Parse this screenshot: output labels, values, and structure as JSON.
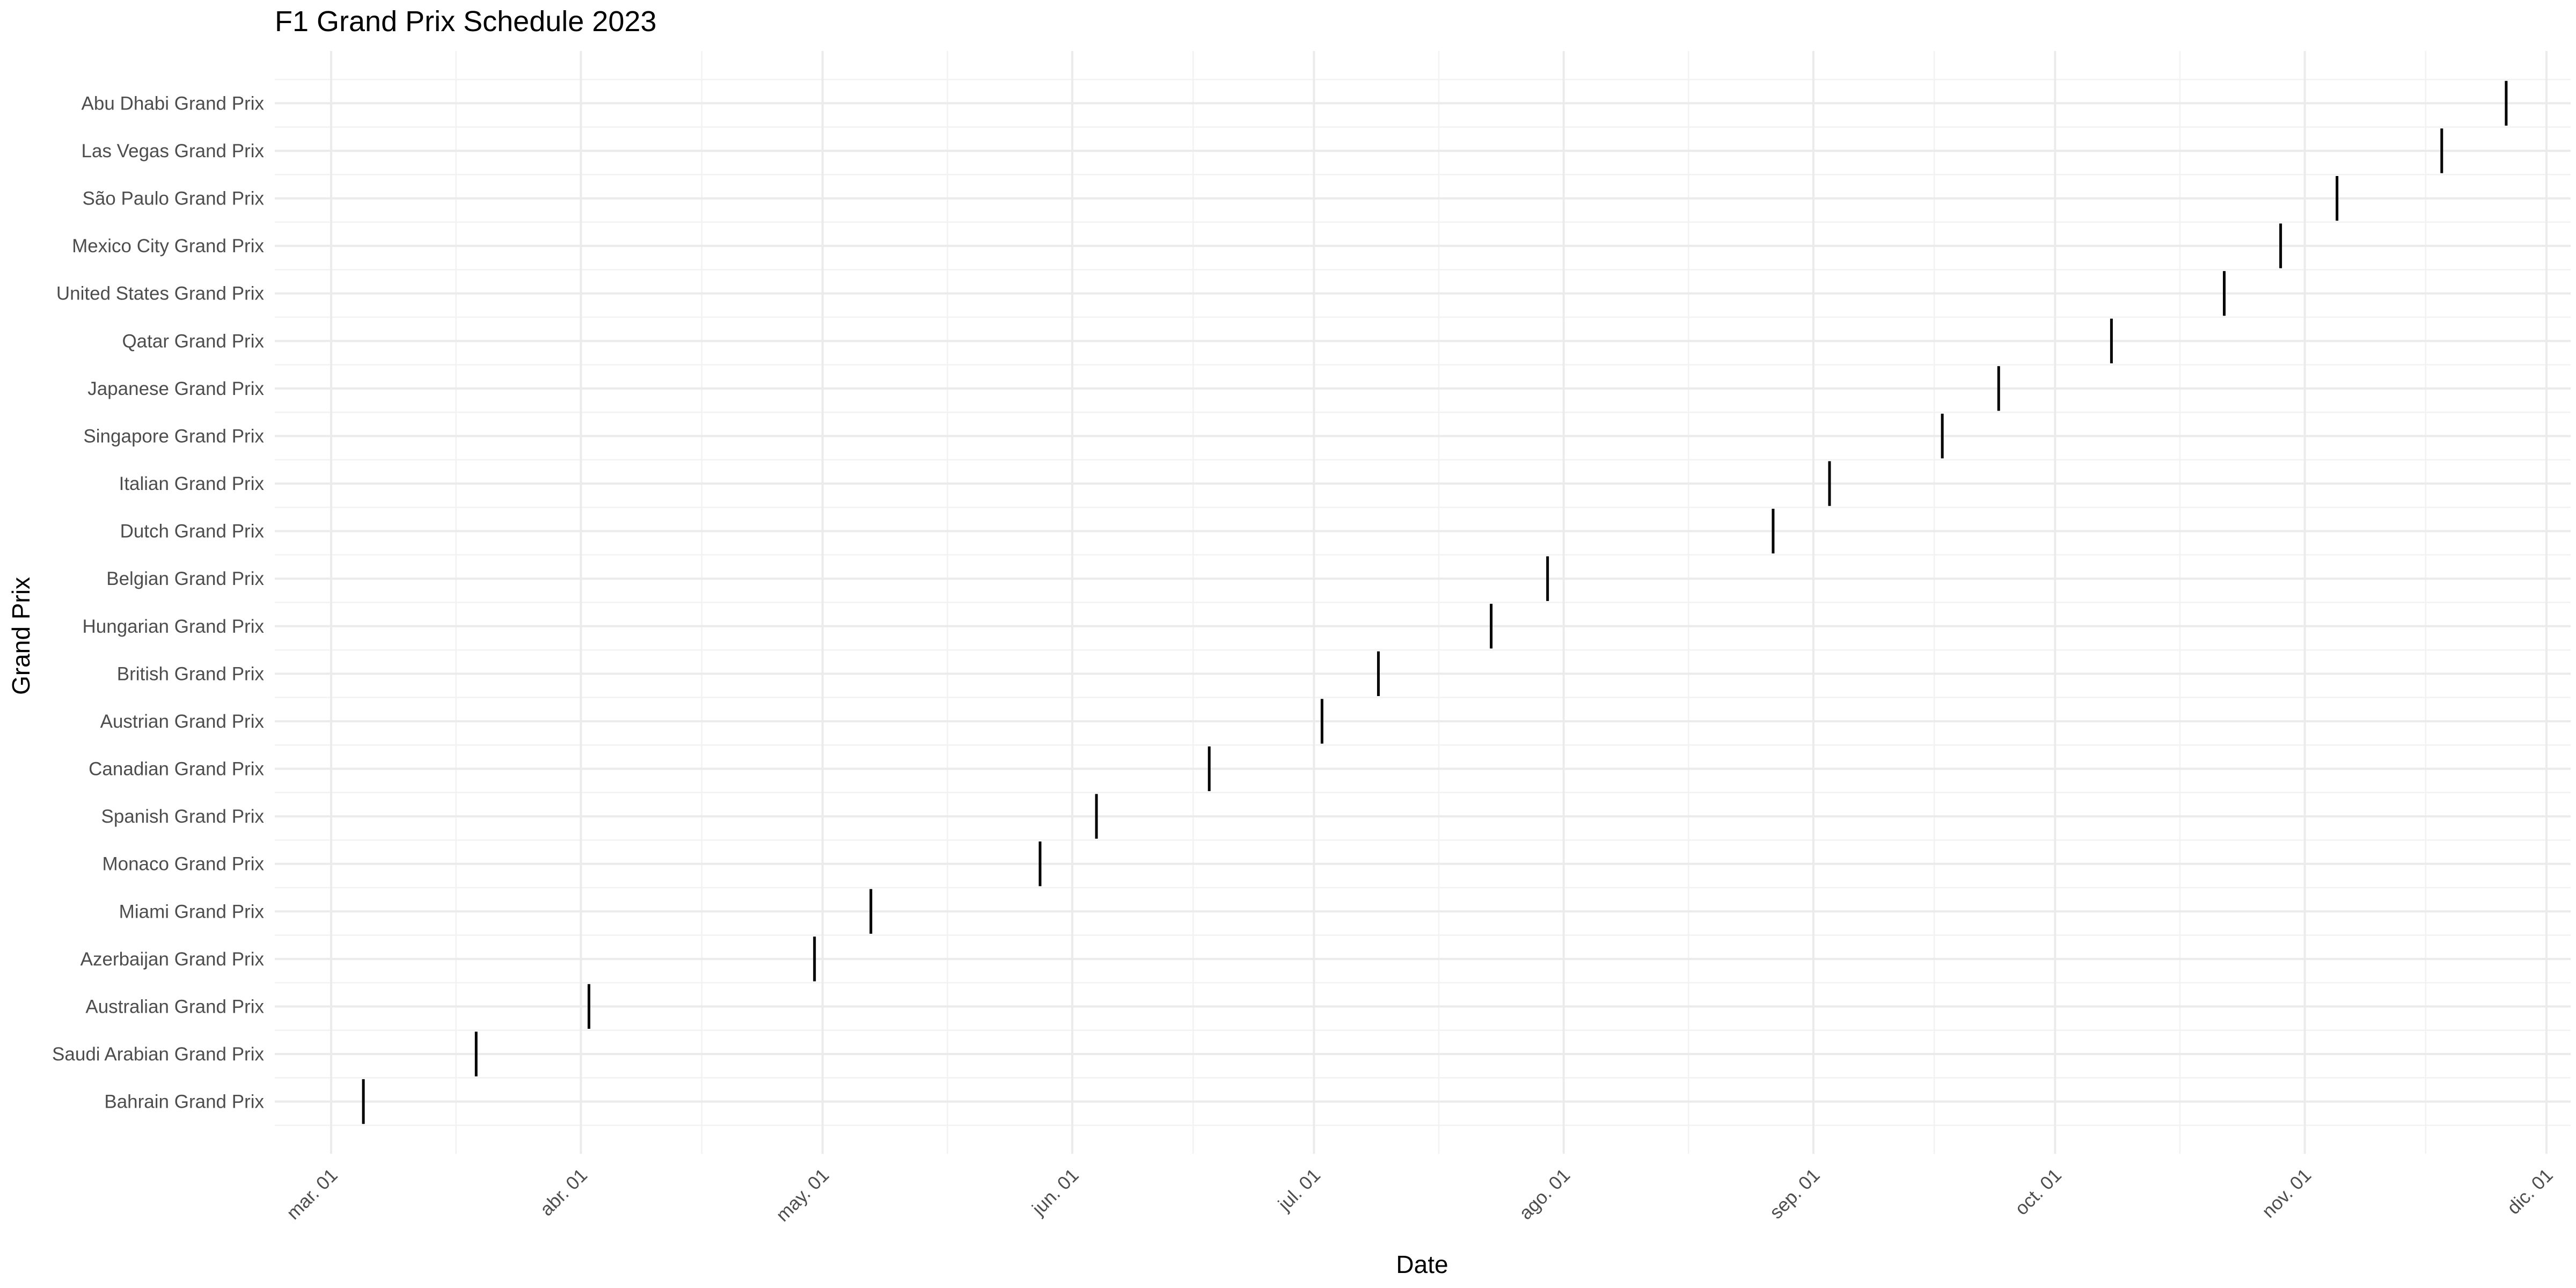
{
  "chart_data": {
    "type": "scatter",
    "title": "F1 Grand Prix Schedule 2023",
    "xlabel": "Date",
    "ylabel": "Grand Prix",
    "x_axis": {
      "type": "date",
      "range": [
        "2023-02-22",
        "2023-12-04"
      ],
      "ticks": [
        {
          "date": "2023-03-01",
          "label": "mar. 01"
        },
        {
          "date": "2023-04-01",
          "label": "abr. 01"
        },
        {
          "date": "2023-05-01",
          "label": "may. 01"
        },
        {
          "date": "2023-06-01",
          "label": "jun. 01"
        },
        {
          "date": "2023-07-01",
          "label": "jul. 01"
        },
        {
          "date": "2023-08-01",
          "label": "ago. 01"
        },
        {
          "date": "2023-09-01",
          "label": "sep. 01"
        },
        {
          "date": "2023-10-01",
          "label": "oct. 01"
        },
        {
          "date": "2023-11-01",
          "label": "nov. 01"
        },
        {
          "date": "2023-12-01",
          "label": "dic. 01"
        }
      ]
    },
    "grid": true,
    "points": [
      {
        "name": "Bahrain Grand Prix",
        "date": "2023-03-05"
      },
      {
        "name": "Saudi Arabian Grand Prix",
        "date": "2023-03-19"
      },
      {
        "name": "Australian Grand Prix",
        "date": "2023-04-02"
      },
      {
        "name": "Azerbaijan Grand Prix",
        "date": "2023-04-30"
      },
      {
        "name": "Miami Grand Prix",
        "date": "2023-05-07"
      },
      {
        "name": "Monaco Grand Prix",
        "date": "2023-05-28"
      },
      {
        "name": "Spanish Grand Prix",
        "date": "2023-06-04"
      },
      {
        "name": "Canadian Grand Prix",
        "date": "2023-06-18"
      },
      {
        "name": "Austrian Grand Prix",
        "date": "2023-07-02"
      },
      {
        "name": "British Grand Prix",
        "date": "2023-07-09"
      },
      {
        "name": "Hungarian Grand Prix",
        "date": "2023-07-23"
      },
      {
        "name": "Belgian Grand Prix",
        "date": "2023-07-30"
      },
      {
        "name": "Dutch Grand Prix",
        "date": "2023-08-27"
      },
      {
        "name": "Italian Grand Prix",
        "date": "2023-09-03"
      },
      {
        "name": "Singapore Grand Prix",
        "date": "2023-09-17"
      },
      {
        "name": "Japanese Grand Prix",
        "date": "2023-09-24"
      },
      {
        "name": "Qatar Grand Prix",
        "date": "2023-10-08"
      },
      {
        "name": "United States Grand Prix",
        "date": "2023-10-22"
      },
      {
        "name": "Mexico City Grand Prix",
        "date": "2023-10-29"
      },
      {
        "name": "São Paulo Grand Prix",
        "date": "2023-11-05"
      },
      {
        "name": "Las Vegas Grand Prix",
        "date": "2023-11-18"
      },
      {
        "name": "Abu Dhabi Grand Prix",
        "date": "2023-11-26"
      }
    ]
  }
}
